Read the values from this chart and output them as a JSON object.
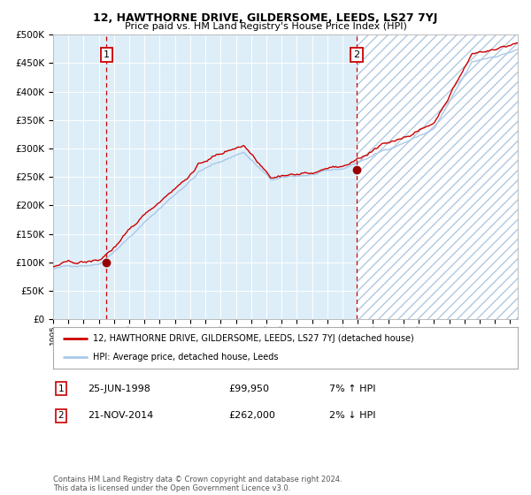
{
  "title": "12, HAWTHORNE DRIVE, GILDERSOME, LEEDS, LS27 7YJ",
  "subtitle": "Price paid vs. HM Land Registry's House Price Index (HPI)",
  "legend_line1": "12, HAWTHORNE DRIVE, GILDERSOME, LEEDS, LS27 7YJ (detached house)",
  "legend_line2": "HPI: Average price, detached house, Leeds",
  "sale1_date_label": "25-JUN-1998",
  "sale1_price_label": "£99,950",
  "sale1_hpi_label": "7% ↑ HPI",
  "sale2_date_label": "21-NOV-2014",
  "sale2_price_label": "£262,000",
  "sale2_hpi_label": "2% ↓ HPI",
  "footnote": "Contains HM Land Registry data © Crown copyright and database right 2024.\nThis data is licensed under the Open Government Licence v3.0.",
  "hpi_line_color": "#aac8e8",
  "price_line_color": "#cc0000",
  "sale_marker_color": "#990000",
  "vline_color": "#cc0000",
  "bg_fill_color": "#ddeeff",
  "ylim": [
    0,
    500000
  ],
  "xlim_start": 1995.0,
  "xlim_end": 2025.5,
  "sale1_x": 1998.5,
  "sale1_y": 99950,
  "sale2_x": 2014.92,
  "sale2_y": 262000
}
